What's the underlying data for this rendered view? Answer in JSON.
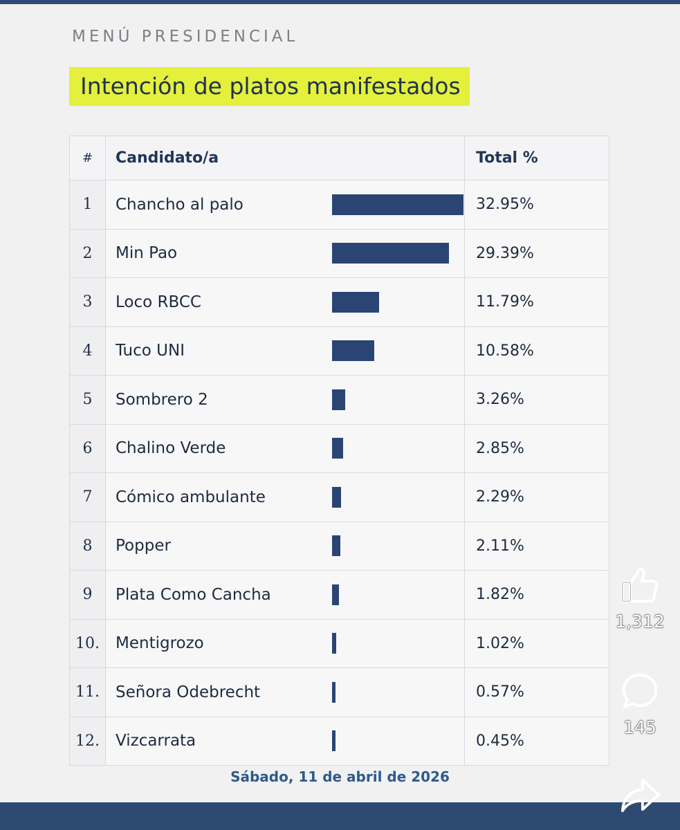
{
  "overline": "MENÚ PRESIDENCIAL",
  "headline": "Intención de platos manifestados",
  "table": {
    "headers": {
      "num": "#",
      "name": "Candidato/a",
      "total": "Total %"
    },
    "rows": [
      {
        "num": "1",
        "name": "Chancho al palo",
        "value": 32.95,
        "value_label": "32.95%"
      },
      {
        "num": "2",
        "name": "Min Pao",
        "value": 29.39,
        "value_label": "29.39%"
      },
      {
        "num": "3",
        "name": "Loco RBCC",
        "value": 11.79,
        "value_label": "11.79%"
      },
      {
        "num": "4",
        "name": "Tuco UNI",
        "value": 10.58,
        "value_label": "10.58%"
      },
      {
        "num": "5",
        "name": "Sombrero 2",
        "value": 3.26,
        "value_label": "3.26%"
      },
      {
        "num": "6",
        "name": "Chalino Verde",
        "value": 2.85,
        "value_label": "2.85%"
      },
      {
        "num": "7",
        "name": "Cómico ambulante",
        "value": 2.29,
        "value_label": "2.29%"
      },
      {
        "num": "8",
        "name": "Popper",
        "value": 2.11,
        "value_label": "2.11%"
      },
      {
        "num": "9",
        "name": "Plata Como Cancha",
        "value": 1.82,
        "value_label": "1.82%"
      },
      {
        "num": "10.",
        "name": "Mentigrozo",
        "value": 1.02,
        "value_label": "1.02%"
      },
      {
        "num": "11.",
        "name": "Señora Odebrecht",
        "value": 0.57,
        "value_label": "0.57%"
      },
      {
        "num": "12.",
        "name": "Vizcarrata",
        "value": 0.45,
        "value_label": "0.45%"
      }
    ]
  },
  "date": "Sábado, 11 de abril de 2026",
  "actions": {
    "like": {
      "icon": "thumbs-up-icon",
      "count": "1,312"
    },
    "comment": {
      "icon": "comment-icon",
      "count": "145"
    },
    "share": {
      "icon": "share-icon"
    }
  },
  "colors": {
    "bar": "#2a4474",
    "highlight": "#e4f03c",
    "frame": "#2d4a73"
  }
}
